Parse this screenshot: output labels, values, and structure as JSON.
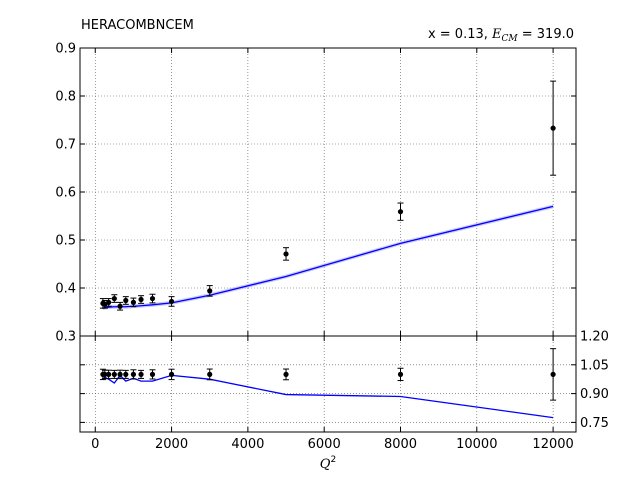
{
  "chart_data": {
    "type": "scatter",
    "title_left": "HERACOMBNCEM",
    "title_right": {
      "pre": "x = 0.13, ",
      "sym": "E",
      "sub": "CM",
      "post": " = 319.0"
    },
    "xlabel": {
      "sym": "Q",
      "sup": "2"
    },
    "xlim": [
      -400,
      12600
    ],
    "x_ticks": [
      0,
      2000,
      4000,
      6000,
      8000,
      10000,
      12000
    ],
    "x_tick_labels": [
      "0",
      "2000",
      "4000",
      "6000",
      "8000",
      "10000",
      "12000"
    ],
    "grid": true,
    "main": {
      "ylim": [
        0.3,
        0.9
      ],
      "y_ticks": [
        0.3,
        0.4,
        0.5,
        0.6,
        0.7,
        0.8,
        0.9
      ],
      "y_tick_labels": [
        "0.3",
        "0.4",
        "0.5",
        "0.6",
        "0.7",
        "0.8",
        "0.9"
      ],
      "data_points": [
        {
          "x": 200,
          "y": 0.368,
          "err": 0.01
        },
        {
          "x": 250,
          "y": 0.366,
          "err": 0.008
        },
        {
          "x": 350,
          "y": 0.37,
          "err": 0.008
        },
        {
          "x": 500,
          "y": 0.378,
          "err": 0.008
        },
        {
          "x": 650,
          "y": 0.362,
          "err": 0.008
        },
        {
          "x": 800,
          "y": 0.374,
          "err": 0.008
        },
        {
          "x": 1000,
          "y": 0.37,
          "err": 0.009
        },
        {
          "x": 1200,
          "y": 0.376,
          "err": 0.008
        },
        {
          "x": 1500,
          "y": 0.378,
          "err": 0.009
        },
        {
          "x": 2000,
          "y": 0.372,
          "err": 0.01
        },
        {
          "x": 3000,
          "y": 0.394,
          "err": 0.011
        },
        {
          "x": 5000,
          "y": 0.471,
          "err": 0.013
        },
        {
          "x": 8000,
          "y": 0.559,
          "err": 0.018
        },
        {
          "x": 12000,
          "y": 0.733,
          "err": 0.098
        }
      ],
      "theory_curve": {
        "color": "#0000ff",
        "band_color": "#aaaaff",
        "x": [
          200,
          250,
          350,
          500,
          650,
          800,
          1000,
          1200,
          1500,
          2000,
          3000,
          5000,
          8000,
          12000
        ],
        "y": [
          0.358,
          0.359,
          0.36,
          0.361,
          0.361,
          0.361,
          0.362,
          0.363,
          0.365,
          0.369,
          0.385,
          0.424,
          0.493,
          0.57
        ],
        "band": 0.004
      }
    },
    "ratio": {
      "ylim": [
        0.7,
        1.2
      ],
      "y_ticks": [
        0.75,
        0.9,
        1.05,
        1.2
      ],
      "y_tick_labels": [
        "0.75",
        "0.90",
        "1.05",
        "1.20"
      ],
      "data_points": [
        {
          "x": 200,
          "y": 1.0,
          "err": 0.027
        },
        {
          "x": 250,
          "y": 1.0,
          "err": 0.022
        },
        {
          "x": 350,
          "y": 1.0,
          "err": 0.022
        },
        {
          "x": 500,
          "y": 1.0,
          "err": 0.021
        },
        {
          "x": 650,
          "y": 1.0,
          "err": 0.022
        },
        {
          "x": 800,
          "y": 1.0,
          "err": 0.021
        },
        {
          "x": 1000,
          "y": 1.0,
          "err": 0.024
        },
        {
          "x": 1200,
          "y": 1.0,
          "err": 0.021
        },
        {
          "x": 1500,
          "y": 1.0,
          "err": 0.024
        },
        {
          "x": 2000,
          "y": 1.0,
          "err": 0.027
        },
        {
          "x": 3000,
          "y": 1.0,
          "err": 0.028
        },
        {
          "x": 5000,
          "y": 1.0,
          "err": 0.028
        },
        {
          "x": 8000,
          "y": 1.0,
          "err": 0.032
        },
        {
          "x": 12000,
          "y": 1.0,
          "err": 0.134
        }
      ],
      "theory_curve": {
        "color": "#0000ff",
        "x": [
          200,
          250,
          350,
          500,
          650,
          800,
          1000,
          1200,
          1500,
          2000,
          3000,
          5000,
          8000,
          12000
        ],
        "y": [
          0.975,
          0.985,
          0.975,
          0.955,
          0.995,
          0.965,
          0.98,
          0.965,
          0.965,
          0.995,
          0.975,
          0.895,
          0.885,
          0.775
        ]
      }
    }
  }
}
